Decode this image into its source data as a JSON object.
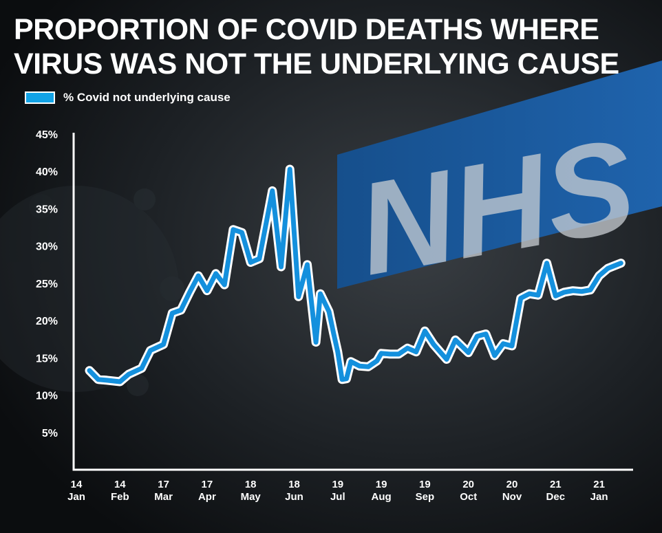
{
  "title_lines": [
    "PROPORTION OF COVID DEATHS WHERE",
    "VIRUS WAS NOT THE UNDERLYING CAUSE"
  ],
  "background": {
    "sign_text": "NHS",
    "sign_color": "#1d5fa8"
  },
  "colors": {
    "line": "#1490dd",
    "line_outline": "#ffffff",
    "axis": "#ffffff",
    "text": "#ffffff"
  },
  "legend": {
    "label": "% Covid not underlying cause",
    "color": "#12a3e6"
  },
  "chart_data": {
    "type": "line",
    "title": "PROPORTION OF COVID DEATHS WHERE VIRUS WAS NOT THE UNDERLYING CAUSE",
    "xlabel": "",
    "ylabel": "",
    "ylim": [
      0,
      45
    ],
    "y_ticks": [
      5,
      10,
      15,
      20,
      25,
      30,
      35,
      40,
      45
    ],
    "y_tick_labels": [
      "5%",
      "10%",
      "15%",
      "20%",
      "25%",
      "30%",
      "35%",
      "40%",
      "45%"
    ],
    "x_tick_labels": [
      [
        "14",
        "Jan"
      ],
      [
        "14",
        "Feb"
      ],
      [
        "17",
        "Mar"
      ],
      [
        "17",
        "Apr"
      ],
      [
        "18",
        "May"
      ],
      [
        "18",
        "Jun"
      ],
      [
        "19",
        "Jul"
      ],
      [
        "19",
        "Aug"
      ],
      [
        "19",
        "Sep"
      ],
      [
        "20",
        "Oct"
      ],
      [
        "20",
        "Nov"
      ],
      [
        "21",
        "Dec"
      ],
      [
        "21",
        "Jan"
      ]
    ],
    "grid": false,
    "legend_position": "top-left",
    "series": [
      {
        "name": "% Covid not underlying cause",
        "x_month_position": [
          0.3,
          0.5,
          0.7,
          1.0,
          1.2,
          1.5,
          1.7,
          2.0,
          2.2,
          2.4,
          2.6,
          2.8,
          3.0,
          3.2,
          3.4,
          3.6,
          3.8,
          4.0,
          4.2,
          4.5,
          4.7,
          4.9,
          5.1,
          5.3,
          5.5,
          5.6,
          5.8,
          5.9,
          6.0,
          6.1,
          6.2,
          6.3,
          6.5,
          6.7,
          6.9,
          7.0,
          7.2,
          7.4,
          7.6,
          7.8,
          8.0,
          8.2,
          8.5,
          8.7,
          9.0,
          9.2,
          9.4,
          9.6,
          9.8,
          10.0,
          10.2,
          10.4,
          10.6,
          10.8,
          11.0,
          11.2,
          11.4,
          11.6,
          11.8,
          12.0,
          12.2,
          12.5
        ],
        "values": [
          13.3,
          12.1,
          12.0,
          11.8,
          12.8,
          13.6,
          16.0,
          16.8,
          21.0,
          21.4,
          23.8,
          26.0,
          24.0,
          26.3,
          24.8,
          32.2,
          31.8,
          27.8,
          28.3,
          37.4,
          27.2,
          40.3,
          23.2,
          27.5,
          17.1,
          23.6,
          21.2,
          18.4,
          15.8,
          12.1,
          12.2,
          14.5,
          13.9,
          13.8,
          14.6,
          15.6,
          15.5,
          15.5,
          16.3,
          15.8,
          18.6,
          16.8,
          14.8,
          17.4,
          15.7,
          17.9,
          18.2,
          15.3,
          16.9,
          16.6,
          23.0,
          23.6,
          23.4,
          27.7,
          23.3,
          23.8,
          24.0,
          23.9,
          24.1,
          26.0,
          27.0,
          27.7
        ]
      }
    ]
  }
}
